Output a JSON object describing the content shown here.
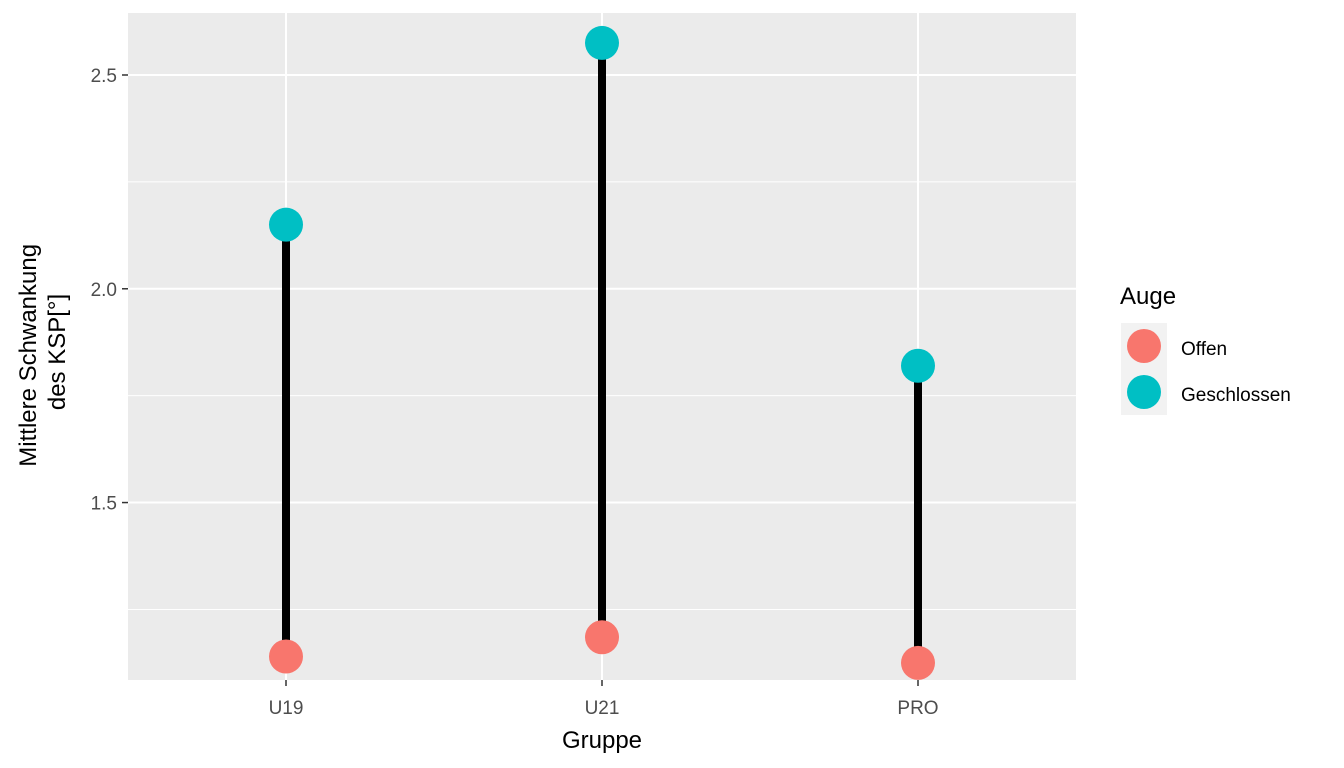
{
  "chart_data": {
    "type": "dumbbell",
    "title": "",
    "xlabel": "Gruppe",
    "ylabel_lines": [
      "Mittlere Schwankung",
      "des KSP[°]"
    ],
    "categories": [
      "U19",
      "U21",
      "PRO"
    ],
    "ylim": [
      1.085,
      2.645
    ],
    "yticks": [
      1.5,
      2.0,
      2.5
    ],
    "ytick_labels": [
      "1.5",
      "2.0",
      "2.5"
    ],
    "legend": {
      "title": "Auge",
      "position": "right"
    },
    "series": [
      {
        "name": "Offen",
        "color": "#F8766D",
        "values": [
          1.14,
          1.185,
          1.125
        ]
      },
      {
        "name": "Geschlossen",
        "color": "#00BFC4",
        "values": [
          2.15,
          2.575,
          1.82
        ]
      }
    ],
    "segment_color": "#000000",
    "panel_background": "#EBEBEB",
    "grid_color": "#FFFFFF",
    "grid": true
  }
}
